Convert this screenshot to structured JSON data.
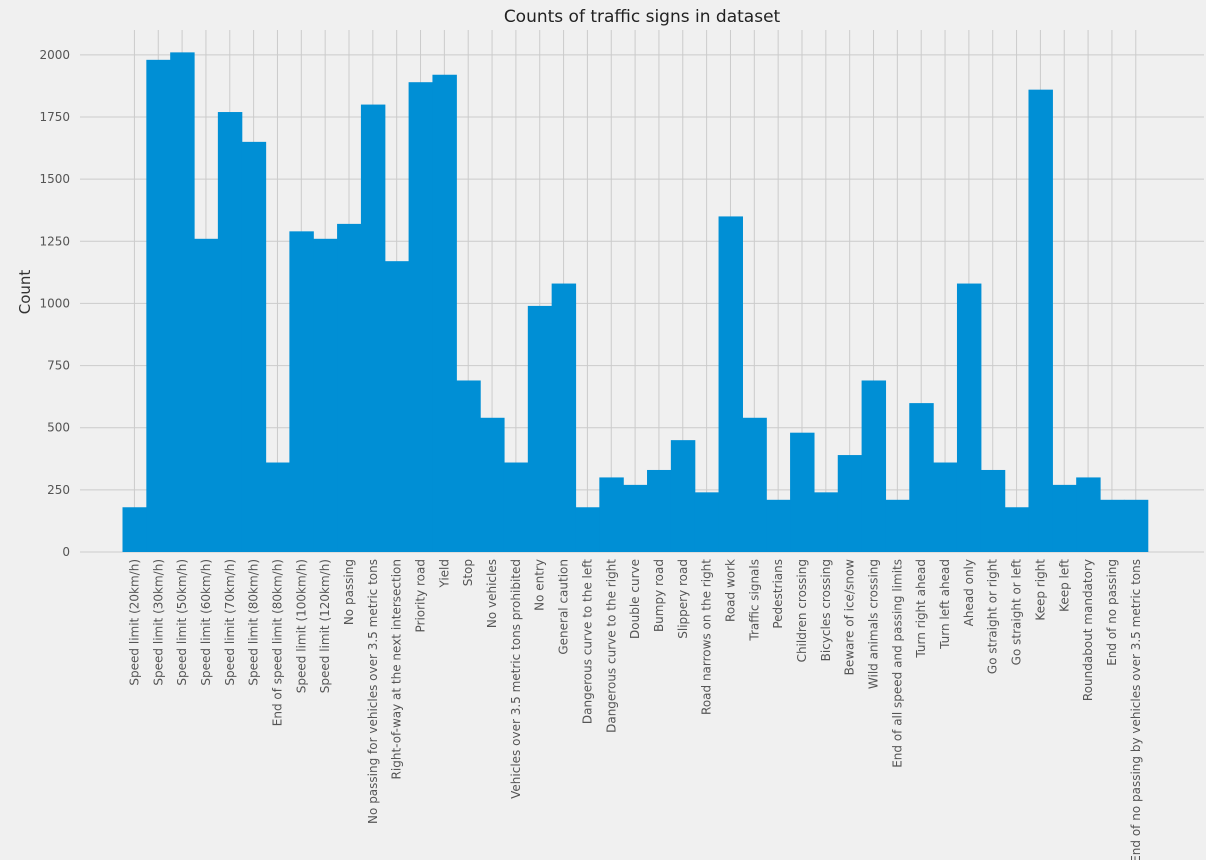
{
  "chart_data": {
    "type": "bar",
    "title": "Counts of traffic signs in dataset",
    "xlabel": "",
    "ylabel": "Count",
    "ylim": [
      0,
      2100
    ],
    "yticks": [
      0,
      250,
      500,
      750,
      1000,
      1250,
      1500,
      1750,
      2000
    ],
    "grid": true,
    "background": "#f0f0f0",
    "bar_color": "#008fd5",
    "categories": [
      "Speed limit (20km/h)",
      "Speed limit (30km/h)",
      "Speed limit (50km/h)",
      "Speed limit (60km/h)",
      "Speed limit (70km/h)",
      "Speed limit (80km/h)",
      "End of speed limit (80km/h)",
      "Speed limit (100km/h)",
      "Speed limit (120km/h)",
      "No passing",
      "No passing for vehicles over 3.5 metric tons",
      "Right-of-way at the next intersection",
      "Priority road",
      "Yield",
      "Stop",
      "No vehicles",
      "Vehicles over 3.5 metric tons prohibited",
      "No entry",
      "General caution",
      "Dangerous curve to the left",
      "Dangerous curve to the right",
      "Double curve",
      "Bumpy road",
      "Slippery road",
      "Road narrows on the right",
      "Road work",
      "Traffic signals",
      "Pedestrians",
      "Children crossing",
      "Bicycles crossing",
      "Beware of ice/snow",
      "Wild animals crossing",
      "End of all speed and passing limits",
      "Turn right ahead",
      "Turn left ahead",
      "Ahead only",
      "Go straight or right",
      "Go straight or left",
      "Keep right",
      "Keep left",
      "Roundabout mandatory",
      "End of no passing",
      "End of no passing by vehicles over 3.5 metric tons"
    ],
    "values": [
      180,
      1980,
      2010,
      1260,
      1770,
      1650,
      360,
      1290,
      1260,
      1320,
      1800,
      1170,
      1890,
      1920,
      690,
      540,
      360,
      990,
      1080,
      180,
      300,
      270,
      330,
      450,
      240,
      1350,
      540,
      210,
      480,
      240,
      390,
      690,
      210,
      599,
      360,
      1080,
      330,
      180,
      1860,
      270,
      300,
      210,
      210
    ]
  }
}
